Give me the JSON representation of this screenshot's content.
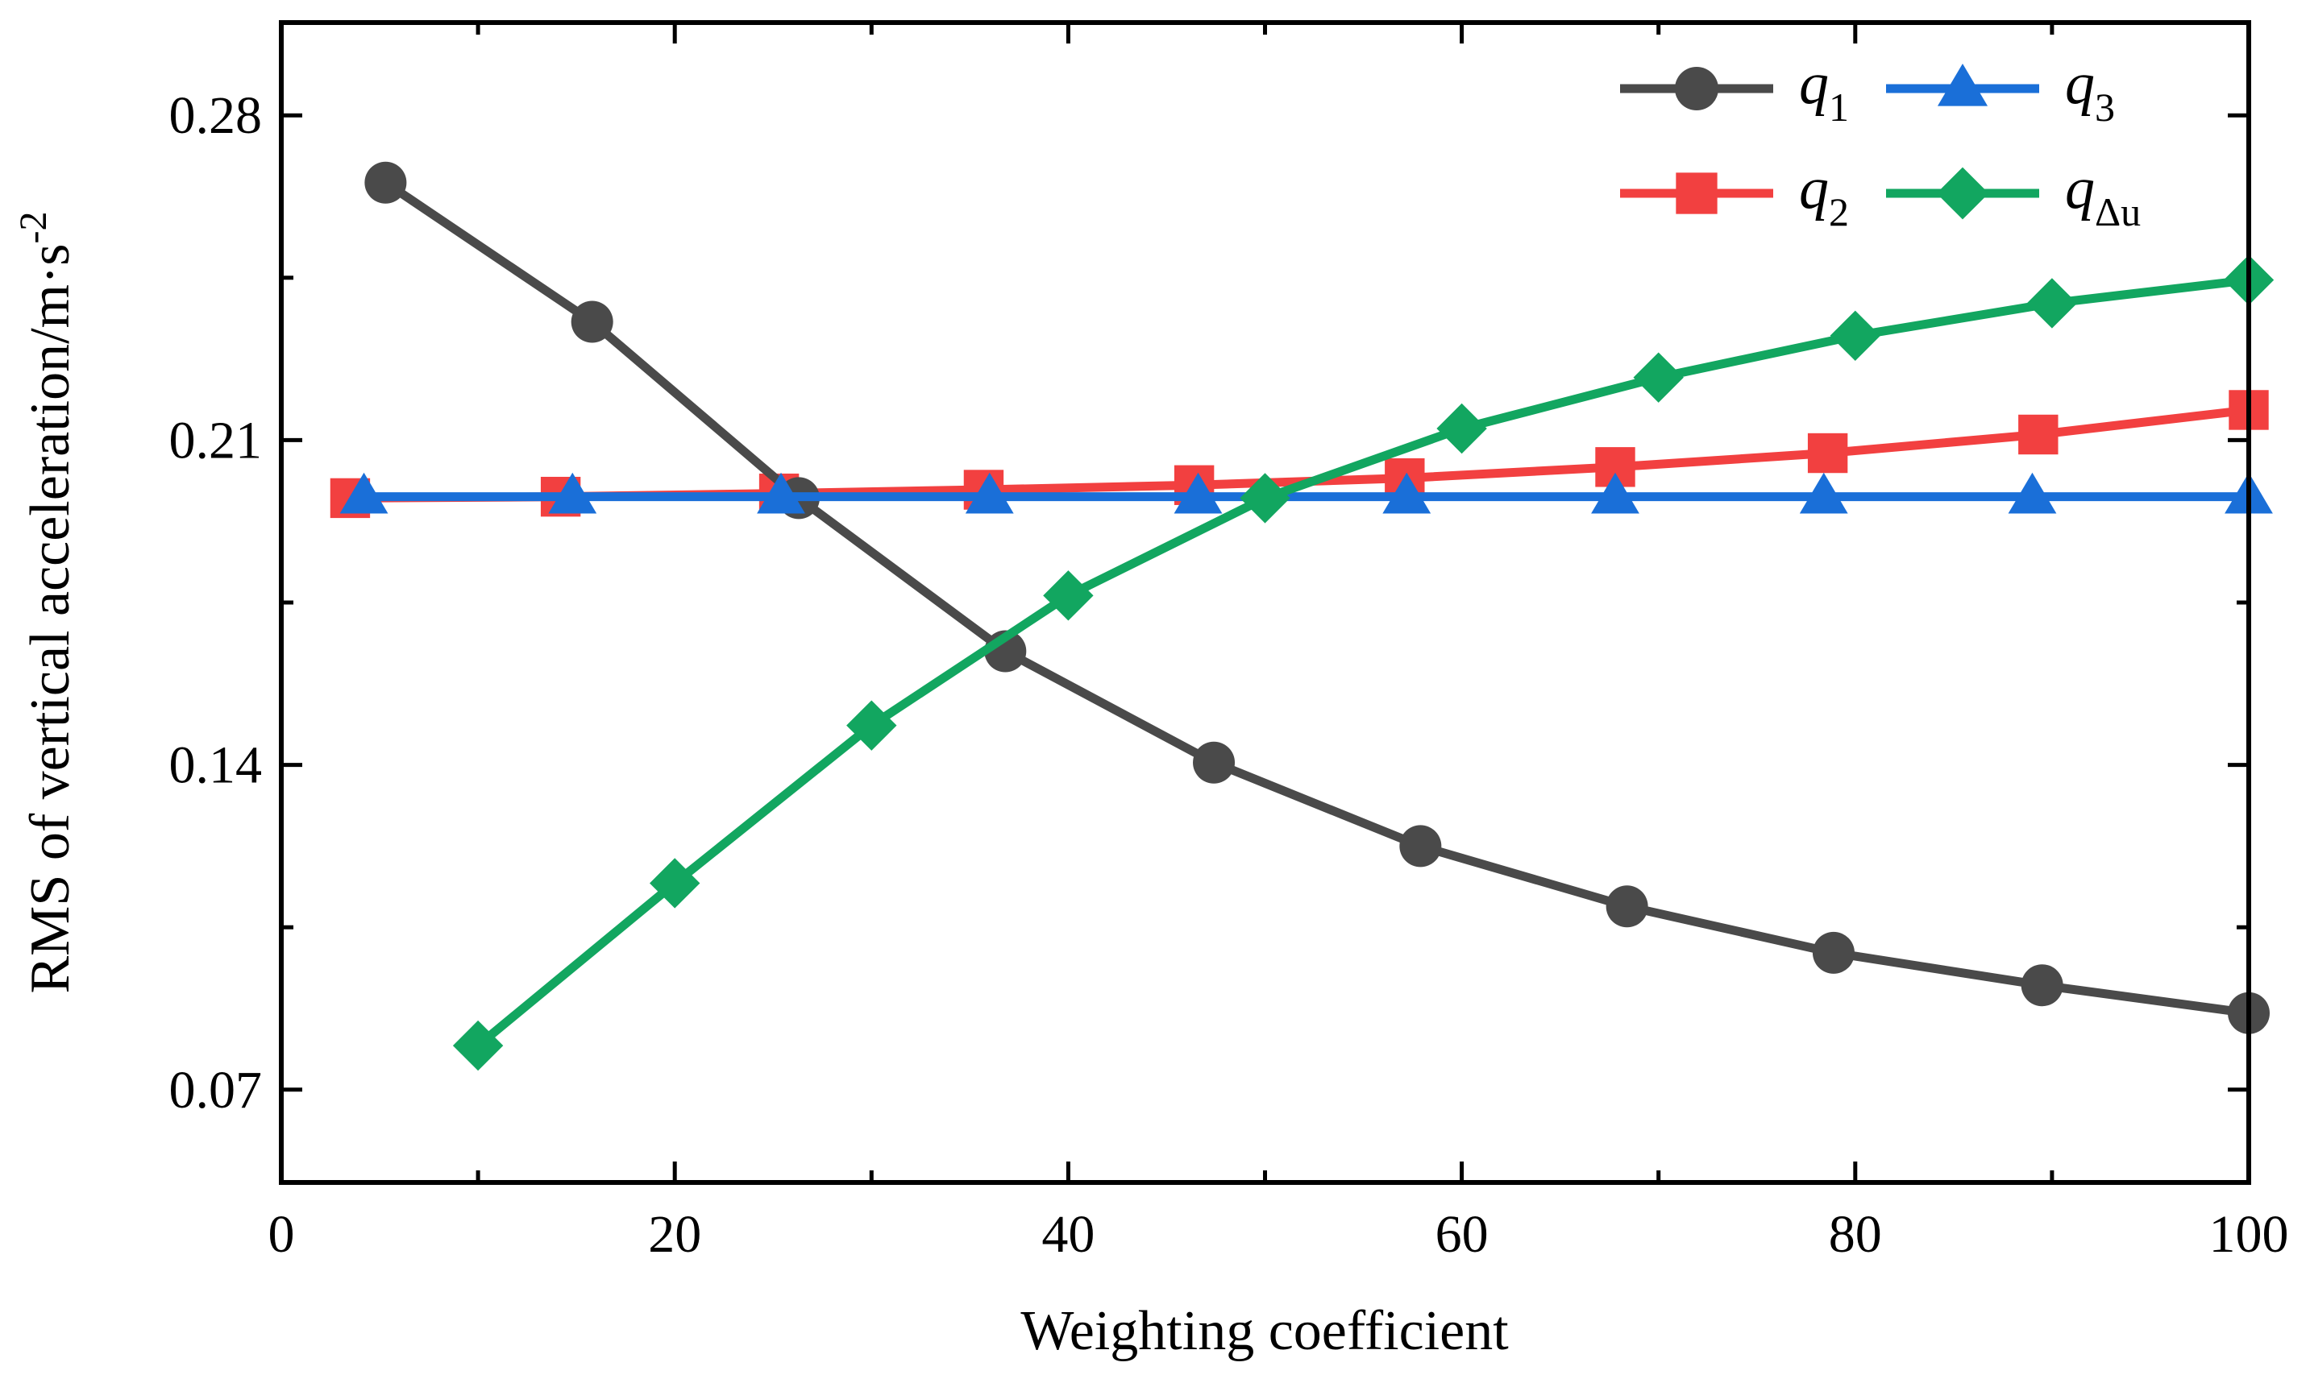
{
  "chart_data": {
    "type": "line",
    "title": "",
    "xlabel": "Weighting coefficient",
    "ylabel": "RMS of vertical acceleration/m·s",
    "ylabel_unit_exponent": "-2",
    "xlim": [
      0,
      100
    ],
    "ylim": [
      0.05,
      0.3
    ],
    "xticks": [
      0,
      20,
      40,
      60,
      80,
      100
    ],
    "xtick_labels": [
      "0",
      "20",
      "40",
      "60",
      "80",
      "100"
    ],
    "yticks": [
      0.07,
      0.14,
      0.21,
      0.28
    ],
    "ytick_labels": [
      "0.07",
      "0.14",
      "0.21",
      "0.28"
    ],
    "legend_position": "top-right",
    "series": [
      {
        "key": "q1",
        "name": "q",
        "subscript": "1",
        "color": "#4a4a4a",
        "marker": "circle",
        "x": [
          5.3,
          15.8,
          26.3,
          36.8,
          47.4,
          57.9,
          68.4,
          78.9,
          89.5,
          100
        ],
        "y": [
          0.2655,
          0.2355,
          0.1975,
          0.1645,
          0.1405,
          0.1225,
          0.1095,
          0.0995,
          0.0925,
          0.0865
        ]
      },
      {
        "key": "q2",
        "name": "q",
        "subscript": "2",
        "color": "#f24040",
        "marker": "square",
        "x": [
          3.5,
          14.2,
          25.3,
          35.7,
          46.4,
          57.1,
          67.8,
          78.6,
          89.3,
          100
        ],
        "y": [
          0.1975,
          0.1978,
          0.1985,
          0.1993,
          0.2003,
          0.2018,
          0.2042,
          0.2072,
          0.2112,
          0.2165
        ]
      },
      {
        "key": "q3",
        "name": "q",
        "subscript": "3",
        "color": "#1a6fd8",
        "marker": "triangle",
        "x": [
          4.2,
          14.8,
          25.4,
          36.0,
          46.6,
          57.2,
          67.8,
          78.4,
          89.0,
          100
        ],
        "y": [
          0.1978,
          0.1978,
          0.1978,
          0.1978,
          0.1978,
          0.1978,
          0.1978,
          0.1978,
          0.1978,
          0.1978
        ]
      },
      {
        "key": "qdu",
        "name": "q",
        "subscript": "Δu",
        "color": "#12a660",
        "marker": "diamond",
        "x": [
          10,
          20,
          30,
          40,
          50,
          60,
          70,
          80,
          90,
          100
        ],
        "y": [
          0.0795,
          0.1145,
          0.1485,
          0.1765,
          0.1975,
          0.2125,
          0.2235,
          0.2325,
          0.2395,
          0.2445
        ]
      }
    ],
    "legend_order": [
      "q1",
      "q3",
      "q2",
      "qdu"
    ]
  }
}
